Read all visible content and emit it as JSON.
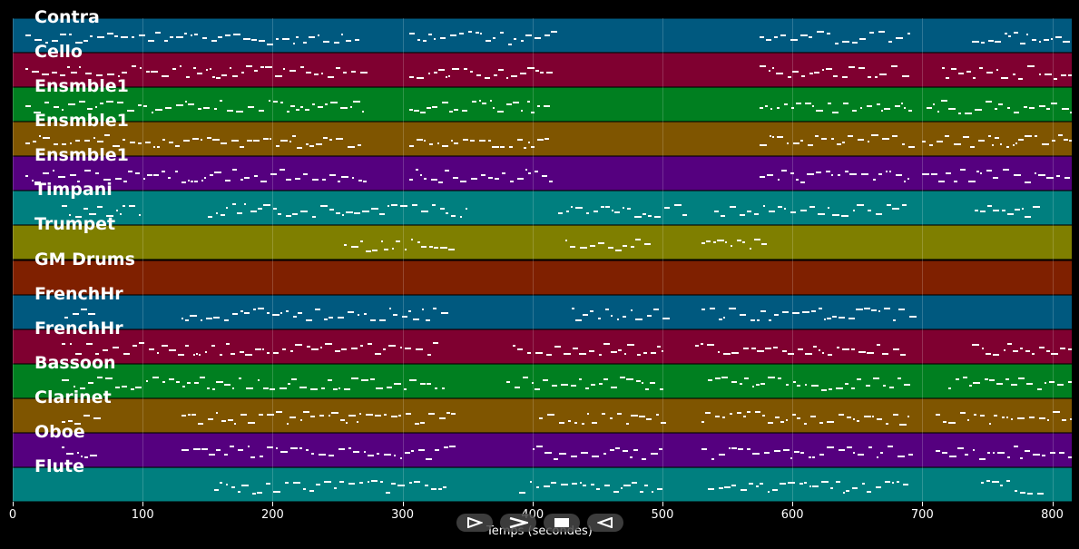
{
  "lanes": [
    {
      "label": "Contra",
      "color": "#00597f"
    },
    {
      "label": "Cello",
      "color": "#7f0030"
    },
    {
      "label": "Ensmble1",
      "color": "#007f20"
    },
    {
      "label": "Ensmble1",
      "color": "#7f5500"
    },
    {
      "label": "Ensmble1",
      "color": "#55007f"
    },
    {
      "label": "Timpani",
      "color": "#007f7f"
    },
    {
      "label": "Trumpet",
      "color": "#7f7f00"
    },
    {
      "label": "GM Drums",
      "color": "#7f2000"
    },
    {
      "label": "FrenchHr",
      "color": "#00597f"
    },
    {
      "label": "FrenchHr",
      "color": "#7f0030"
    },
    {
      "label": "Bassoon",
      "color": "#007f20"
    },
    {
      "label": "Clarinet",
      "color": "#7f5500"
    },
    {
      "label": "Oboe",
      "color": "#55007f"
    },
    {
      "label": "Flute",
      "color": "#007f7f"
    }
  ],
  "note_segments": [
    [
      [
        10,
        270
      ],
      [
        305,
        415
      ],
      [
        575,
        690
      ],
      [
        738,
        815
      ]
    ],
    [
      [
        10,
        270
      ],
      [
        305,
        415
      ],
      [
        575,
        690
      ],
      [
        715,
        815
      ]
    ],
    [
      [
        10,
        270
      ],
      [
        305,
        415
      ],
      [
        575,
        690
      ],
      [
        703,
        815
      ]
    ],
    [
      [
        10,
        270
      ],
      [
        305,
        415
      ],
      [
        575,
        690
      ],
      [
        700,
        815
      ]
    ],
    [
      [
        10,
        270
      ],
      [
        305,
        415
      ],
      [
        575,
        690
      ],
      [
        700,
        815
      ]
    ],
    [
      [
        38,
        100
      ],
      [
        150,
        350
      ],
      [
        420,
        520
      ],
      [
        540,
        690
      ],
      [
        740,
        790
      ]
    ],
    [
      [
        255,
        340
      ],
      [
        425,
        490
      ],
      [
        530,
        580
      ]
    ],
    [],
    [
      [
        40,
        65
      ],
      [
        130,
        335
      ],
      [
        430,
        500
      ],
      [
        530,
        690
      ],
      [
        815,
        815
      ]
    ],
    [
      [
        38,
        330
      ],
      [
        385,
        500
      ],
      [
        525,
        690
      ],
      [
        738,
        815
      ]
    ],
    [
      [
        38,
        335
      ],
      [
        380,
        500
      ],
      [
        535,
        690
      ],
      [
        720,
        815
      ]
    ],
    [
      [
        38,
        65
      ],
      [
        130,
        340
      ],
      [
        405,
        500
      ],
      [
        530,
        690
      ],
      [
        710,
        815
      ]
    ],
    [
      [
        38,
        65
      ],
      [
        130,
        340
      ],
      [
        400,
        500
      ],
      [
        530,
        690
      ],
      [
        710,
        815
      ]
    ],
    [
      [
        155,
        335
      ],
      [
        390,
        500
      ],
      [
        535,
        690
      ],
      [
        745,
        790
      ]
    ]
  ],
  "axis": {
    "ticks": [
      0,
      100,
      200,
      300,
      400,
      500,
      600,
      700,
      800
    ],
    "title": "Temps (secondes)",
    "xlim": [
      0,
      815
    ]
  },
  "controls": [
    {
      "name": "play-icon"
    },
    {
      "name": "fast-forward-icon"
    },
    {
      "name": "stop-icon"
    },
    {
      "name": "rewind-icon"
    }
  ]
}
